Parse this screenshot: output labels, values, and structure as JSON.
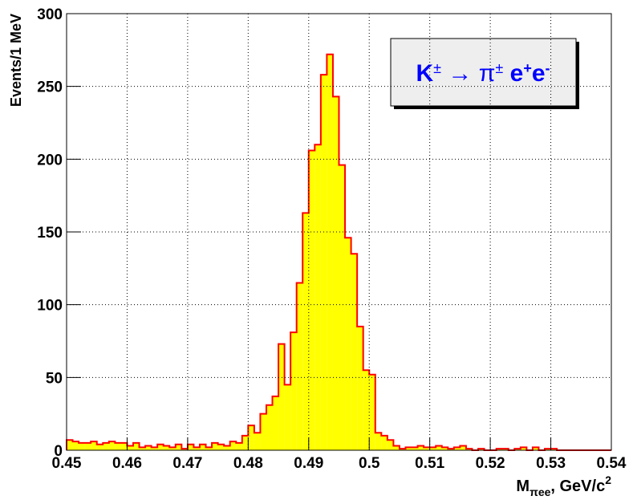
{
  "chart_data": {
    "type": "histogram",
    "xlabel": [
      "M",
      "πee",
      ", GeV/c",
      "2"
    ],
    "ylabel": "Events/1 MeV",
    "annotation": [
      "K",
      "±",
      " → π",
      "±",
      " e",
      "+",
      "e",
      "-"
    ],
    "bins": [
      0.45,
      0.451,
      0.452,
      0.453,
      0.454,
      0.455,
      0.456,
      0.457,
      0.458,
      0.459,
      0.46,
      0.461,
      0.462,
      0.463,
      0.464,
      0.465,
      0.466,
      0.467,
      0.468,
      0.469,
      0.47,
      0.471,
      0.472,
      0.473,
      0.474,
      0.475,
      0.476,
      0.477,
      0.478,
      0.479,
      0.48,
      0.481,
      0.482,
      0.483,
      0.484,
      0.485,
      0.486,
      0.487,
      0.488,
      0.489,
      0.49,
      0.491,
      0.492,
      0.493,
      0.494,
      0.495,
      0.496,
      0.497,
      0.498,
      0.499,
      0.5,
      0.501,
      0.502,
      0.503,
      0.504,
      0.505,
      0.506,
      0.507,
      0.508,
      0.509,
      0.51,
      0.511,
      0.512,
      0.513,
      0.514,
      0.515,
      0.516,
      0.517,
      0.518,
      0.519,
      0.52,
      0.521,
      0.522,
      0.523,
      0.524,
      0.525,
      0.526,
      0.527,
      0.528,
      0.529,
      0.53,
      0.531,
      0.532,
      0.533,
      0.534,
      0.535,
      0.536,
      0.537,
      0.538,
      0.539,
      0.54
    ],
    "values": [
      7,
      6,
      5,
      5,
      6,
      4,
      5,
      6,
      5,
      5,
      3,
      5,
      2,
      3,
      2,
      4,
      3,
      2,
      4,
      1,
      4,
      2,
      4,
      2,
      5,
      4,
      3,
      6,
      5,
      10,
      17,
      12,
      25,
      31,
      37,
      73,
      45,
      81,
      115,
      163,
      206,
      210,
      258,
      272,
      243,
      196,
      146,
      135,
      85,
      55,
      52,
      12,
      10,
      7,
      3,
      1,
      2,
      2,
      3,
      2,
      2,
      3,
      2,
      1,
      2,
      3,
      1,
      0,
      1,
      0,
      0,
      1,
      1,
      0,
      1,
      2,
      0,
      2,
      0,
      1,
      1,
      0,
      0,
      0,
      0,
      0,
      0,
      0,
      0,
      0
    ],
    "color": "#ffff00",
    "edgecolor": "#ff0000",
    "xlim": [
      0.45,
      0.54
    ],
    "xticks": [
      0.45,
      0.46,
      0.47,
      0.48,
      0.49,
      0.5,
      0.51,
      0.52,
      0.53,
      0.54
    ],
    "ylim": [
      0,
      300
    ],
    "yticks": [
      0,
      50,
      100,
      150,
      200,
      250,
      300
    ],
    "grid": true
  }
}
